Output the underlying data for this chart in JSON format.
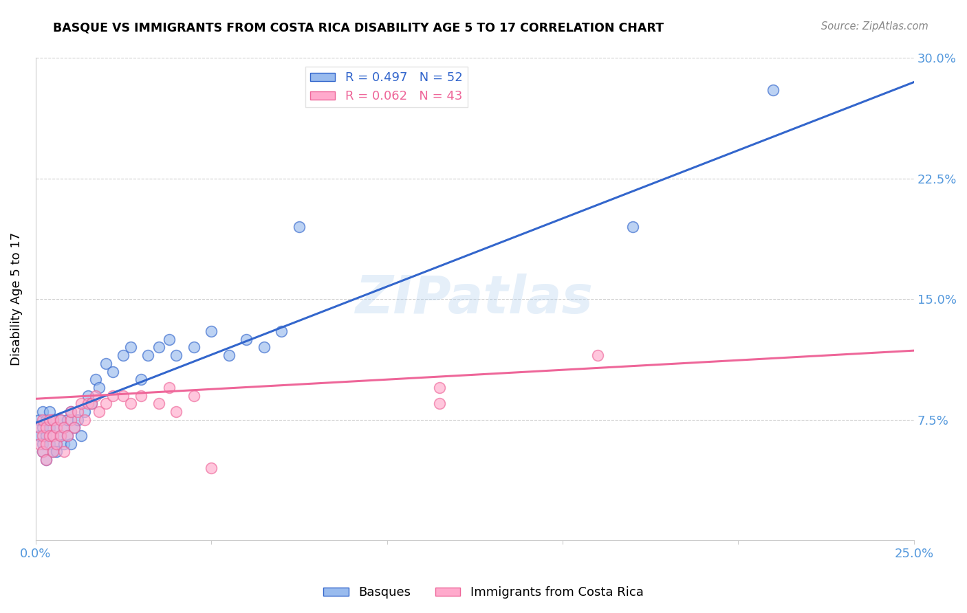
{
  "title": "BASQUE VS IMMIGRANTS FROM COSTA RICA DISABILITY AGE 5 TO 17 CORRELATION CHART",
  "source": "Source: ZipAtlas.com",
  "ylabel": "Disability Age 5 to 17",
  "xlim": [
    0.0,
    0.25
  ],
  "ylim": [
    0.0,
    0.3
  ],
  "xticks": [
    0.0,
    0.05,
    0.1,
    0.15,
    0.2,
    0.25
  ],
  "xticklabels": [
    "0.0%",
    "",
    "",
    "",
    "",
    "25.0%"
  ],
  "yticks": [
    0.0,
    0.075,
    0.15,
    0.225,
    0.3
  ],
  "yticklabels": [
    "",
    "7.5%",
    "15.0%",
    "22.5%",
    "30.0%"
  ],
  "legend1_label": "R = 0.497   N = 52",
  "legend2_label": "R = 0.062   N = 43",
  "legend1_face": "#99BBEE",
  "legend2_face": "#FFAACC",
  "line1_color": "#3366CC",
  "line2_color": "#EE6699",
  "tick_color": "#5599DD",
  "watermark": "ZIPatlas",
  "background_color": "#FFFFFF",
  "grid_color": "#CCCCCC",
  "basque_x": [
    0.001,
    0.001,
    0.002,
    0.002,
    0.002,
    0.002,
    0.003,
    0.003,
    0.003,
    0.004,
    0.004,
    0.004,
    0.005,
    0.005,
    0.005,
    0.006,
    0.006,
    0.006,
    0.007,
    0.007,
    0.008,
    0.008,
    0.009,
    0.009,
    0.01,
    0.01,
    0.011,
    0.012,
    0.013,
    0.014,
    0.015,
    0.016,
    0.017,
    0.018,
    0.02,
    0.022,
    0.025,
    0.027,
    0.03,
    0.032,
    0.035,
    0.038,
    0.04,
    0.045,
    0.05,
    0.055,
    0.06,
    0.065,
    0.07,
    0.075,
    0.17,
    0.21
  ],
  "basque_y": [
    0.065,
    0.075,
    0.06,
    0.07,
    0.08,
    0.055,
    0.065,
    0.075,
    0.05,
    0.06,
    0.07,
    0.08,
    0.055,
    0.065,
    0.075,
    0.06,
    0.07,
    0.055,
    0.065,
    0.075,
    0.06,
    0.07,
    0.065,
    0.075,
    0.06,
    0.08,
    0.07,
    0.075,
    0.065,
    0.08,
    0.09,
    0.085,
    0.1,
    0.095,
    0.11,
    0.105,
    0.115,
    0.12,
    0.1,
    0.115,
    0.12,
    0.125,
    0.115,
    0.12,
    0.13,
    0.115,
    0.125,
    0.12,
    0.13,
    0.195,
    0.195,
    0.28
  ],
  "costarica_x": [
    0.001,
    0.001,
    0.002,
    0.002,
    0.002,
    0.003,
    0.003,
    0.003,
    0.004,
    0.004,
    0.005,
    0.005,
    0.005,
    0.006,
    0.006,
    0.007,
    0.007,
    0.008,
    0.008,
    0.009,
    0.01,
    0.01,
    0.011,
    0.012,
    0.013,
    0.014,
    0.015,
    0.016,
    0.017,
    0.018,
    0.02,
    0.022,
    0.025,
    0.027,
    0.03,
    0.035,
    0.038,
    0.04,
    0.045,
    0.05,
    0.115,
    0.115,
    0.16
  ],
  "costarica_y": [
    0.06,
    0.07,
    0.055,
    0.065,
    0.075,
    0.06,
    0.07,
    0.05,
    0.065,
    0.075,
    0.055,
    0.065,
    0.075,
    0.06,
    0.07,
    0.065,
    0.075,
    0.055,
    0.07,
    0.065,
    0.075,
    0.08,
    0.07,
    0.08,
    0.085,
    0.075,
    0.085,
    0.085,
    0.09,
    0.08,
    0.085,
    0.09,
    0.09,
    0.085,
    0.09,
    0.085,
    0.095,
    0.08,
    0.09,
    0.045,
    0.085,
    0.095,
    0.115
  ],
  "basque_line_x": [
    0.0,
    0.25
  ],
  "basque_line_y": [
    0.073,
    0.285
  ],
  "costarica_line_x": [
    0.0,
    0.25
  ],
  "costarica_line_y": [
    0.088,
    0.118
  ]
}
